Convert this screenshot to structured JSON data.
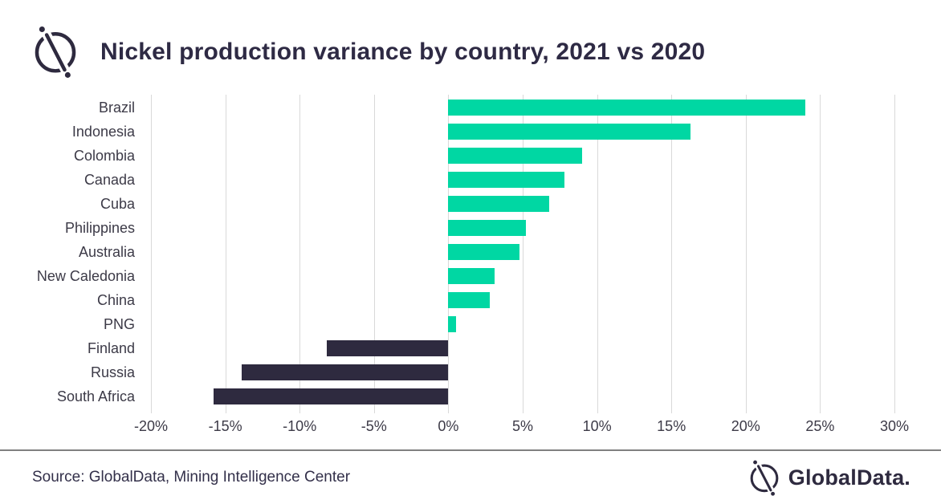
{
  "header": {
    "logo_icon": "globaldata-mark-icon"
  },
  "chart_data": {
    "type": "bar",
    "orientation": "horizontal",
    "title": "Nickel production variance by country, 2021 vs 2020",
    "categories": [
      "Brazil",
      "Indonesia",
      "Colombia",
      "Canada",
      "Cuba",
      "Philippines",
      "Australia",
      "New Caledonia",
      "China",
      "PNG",
      "Finland",
      "Russia",
      "South Africa"
    ],
    "values": [
      24.0,
      16.3,
      9.0,
      7.8,
      6.8,
      5.2,
      4.8,
      3.1,
      2.8,
      0.5,
      -8.2,
      -13.9,
      -15.8
    ],
    "unit": "%",
    "xlabel": "",
    "ylabel": "",
    "xlim": [
      -20,
      30
    ],
    "xticks": [
      "-20%",
      "-15%",
      "-10%",
      "-5%",
      "0%",
      "5%",
      "10%",
      "15%",
      "20%",
      "25%",
      "30%"
    ],
    "grid": true,
    "legend": false,
    "positive_color": "#00D7A3",
    "negative_color": "#2E2A3F",
    "gridline_color": "#D9D9D9"
  },
  "footer": {
    "source": "Source: GlobalData, Mining Intelligence Center",
    "brand": "GlobalData.",
    "brand_icon": "globaldata-mark-icon"
  }
}
